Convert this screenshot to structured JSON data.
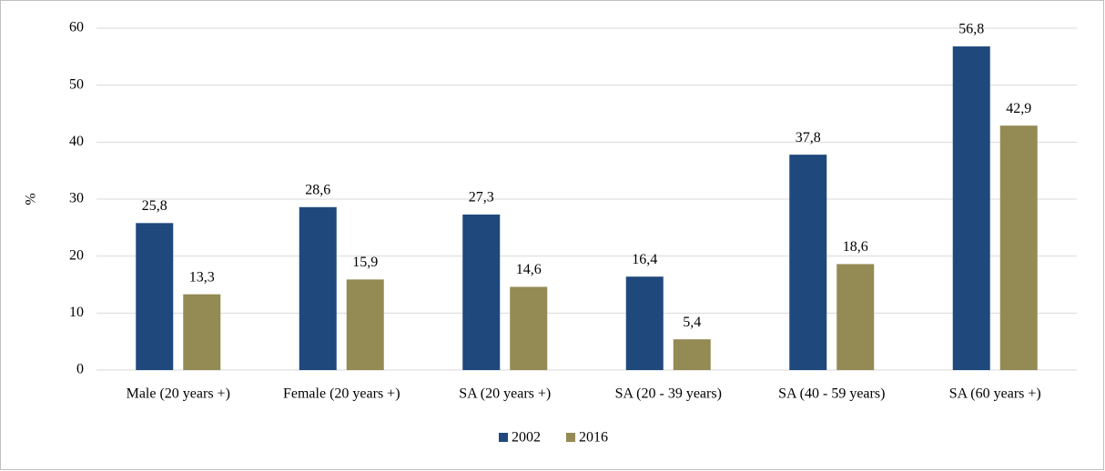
{
  "chart_data": {
    "type": "bar",
    "y_label": "%",
    "categories": [
      "Male (20 years +)",
      "Female (20 years +)",
      "SA (20 years +)",
      "SA (20 - 39 years)",
      "SA (40 - 59 years)",
      "SA (60 years +)"
    ],
    "series": [
      {
        "name": "2002",
        "color": "#1f497d",
        "values": [
          25.8,
          28.6,
          27.3,
          16.4,
          37.8,
          56.8
        ],
        "value_labels": [
          "25,8",
          "28,6",
          "27,3",
          "16,4",
          "37,8",
          "56,8"
        ]
      },
      {
        "name": "2016",
        "color": "#948a54",
        "values": [
          13.3,
          15.9,
          14.6,
          5.4,
          18.6,
          42.9
        ],
        "value_labels": [
          "13,3",
          "15,9",
          "14,6",
          "5,4",
          "18,6",
          "42,9"
        ]
      }
    ],
    "ylim": [
      0,
      60
    ],
    "yticks": [
      0,
      10,
      20,
      30,
      40,
      50,
      60
    ],
    "grid": true,
    "legend": "bottom"
  }
}
